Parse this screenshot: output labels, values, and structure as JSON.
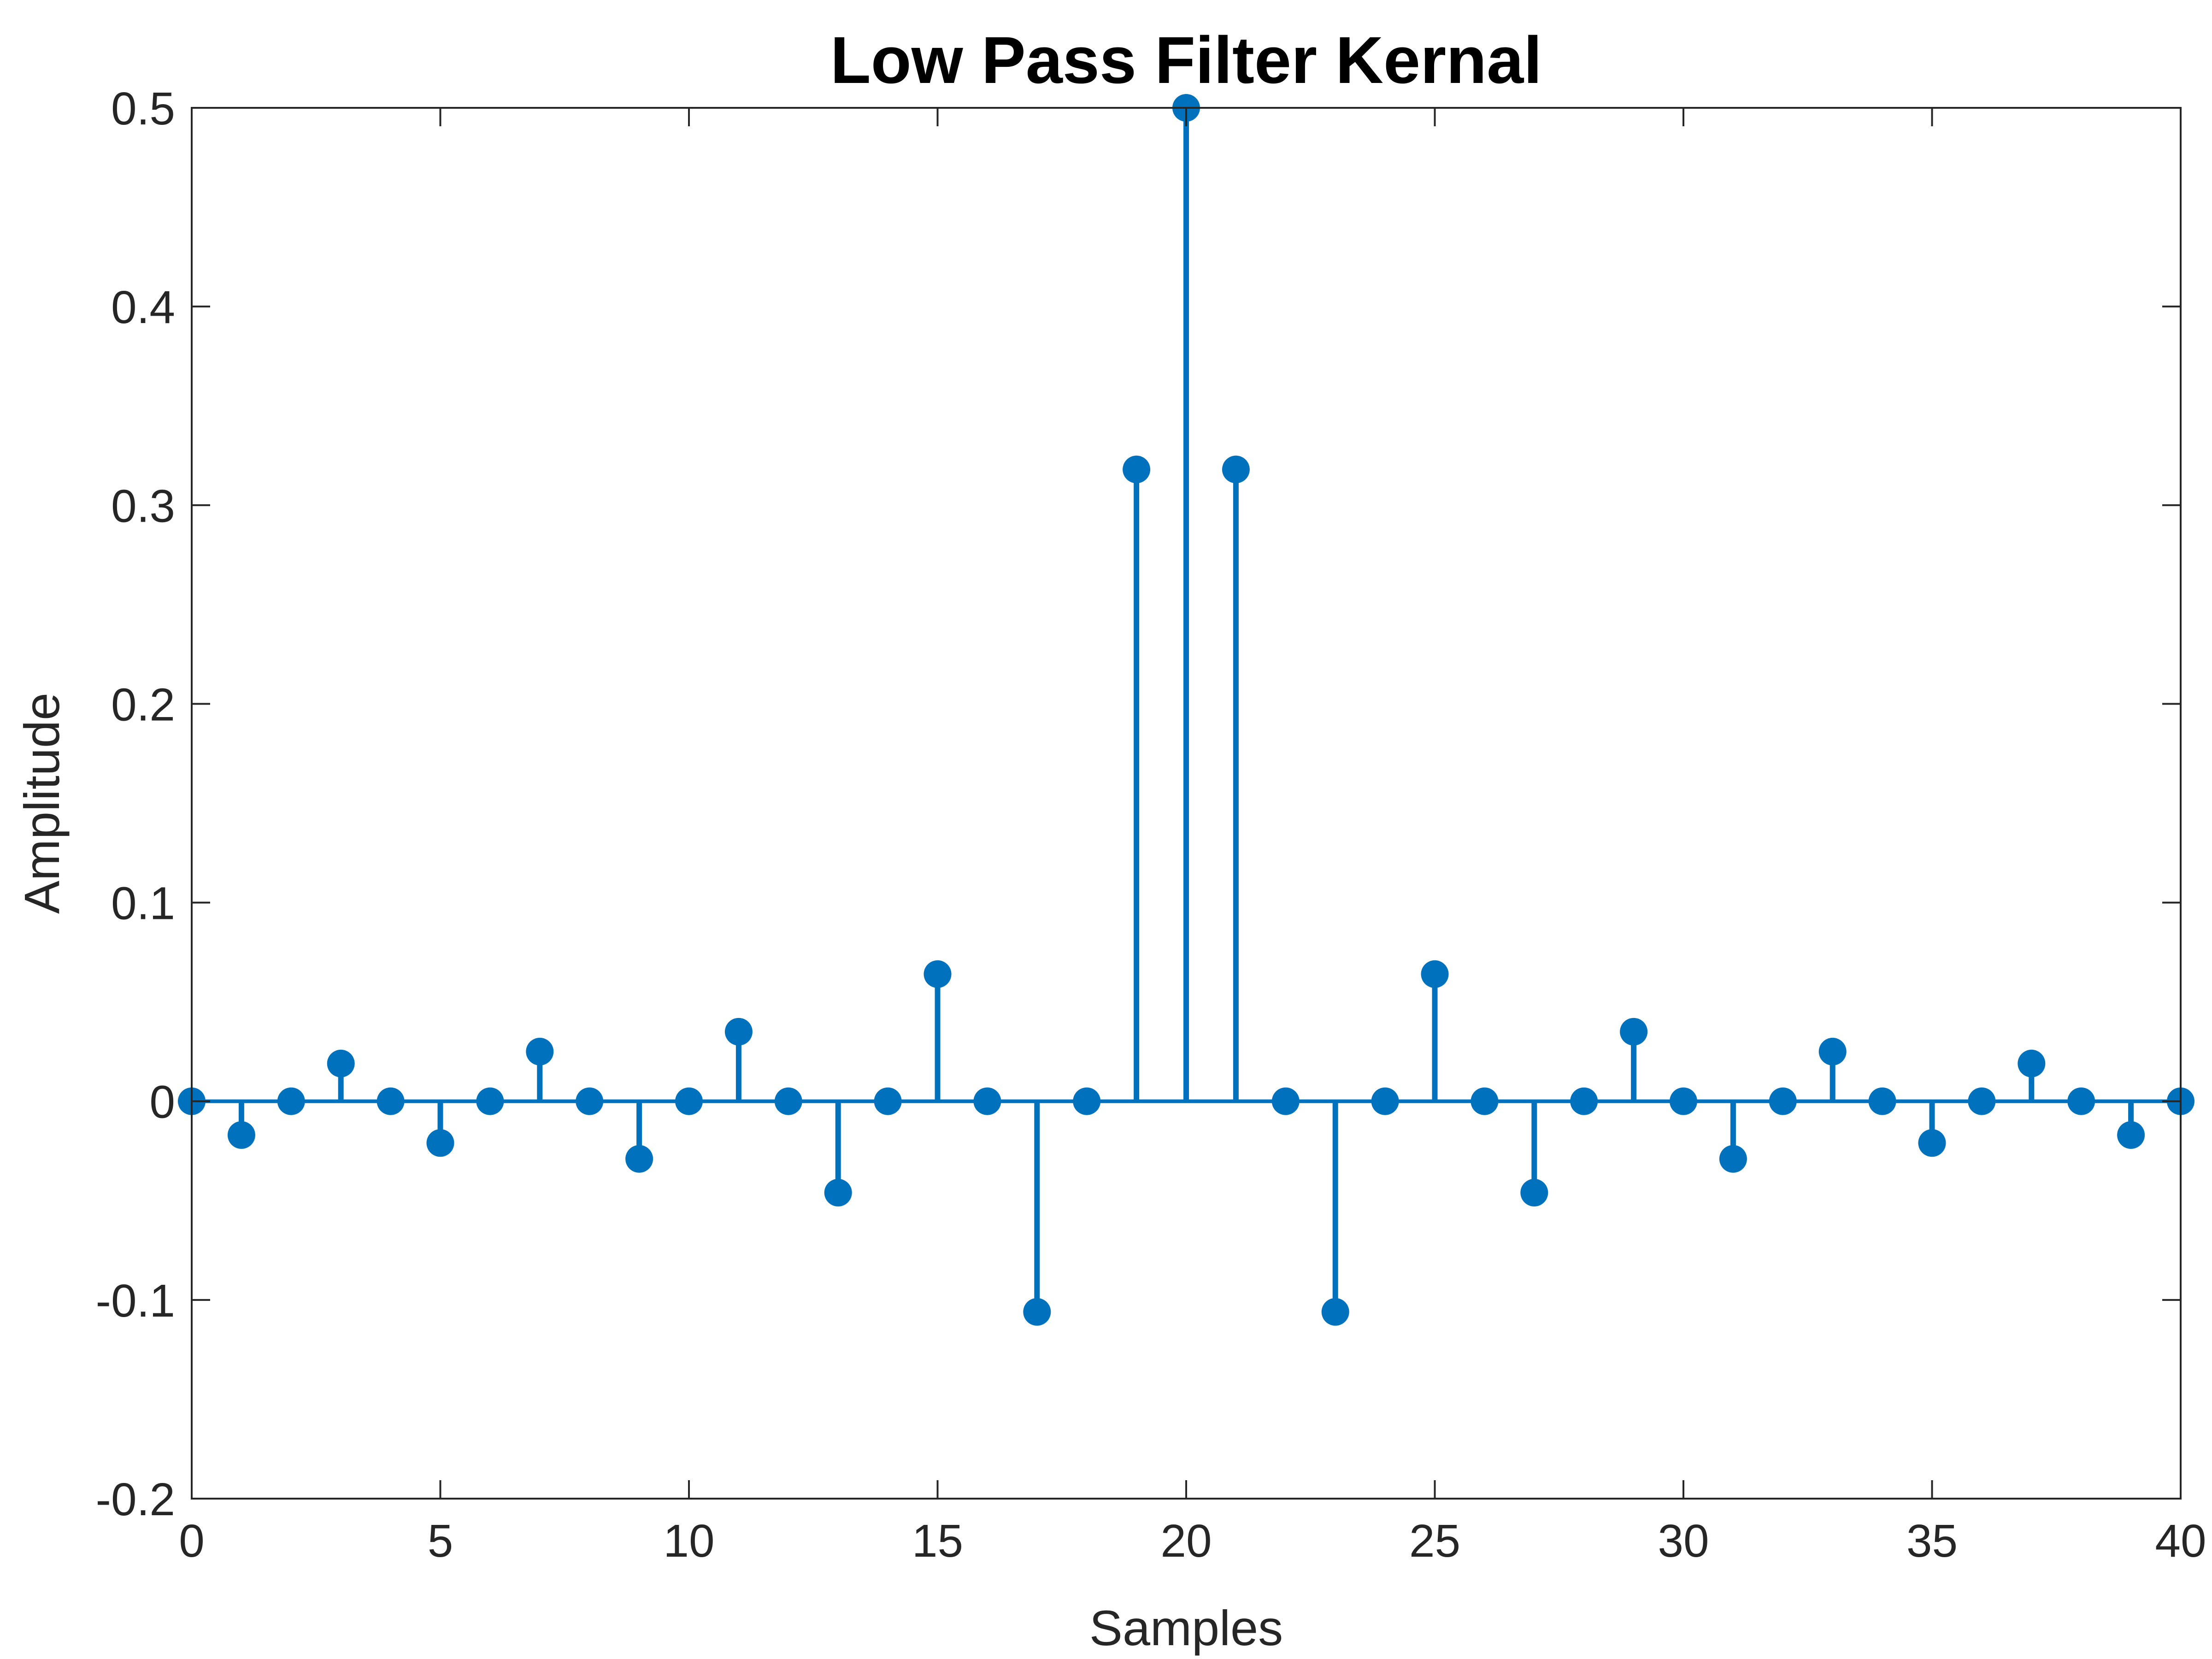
{
  "chart_data": {
    "type": "stem",
    "title": "Low Pass Filter Kernal",
    "xlabel": "Samples",
    "ylabel": "Amplitude",
    "xlim": [
      0,
      40
    ],
    "ylim": [
      -0.2,
      0.5
    ],
    "xticks": [
      0,
      5,
      10,
      15,
      20,
      25,
      30,
      35,
      40
    ],
    "xtick_labels": [
      "0",
      "5",
      "10",
      "15",
      "20",
      "25",
      "30",
      "35",
      "40"
    ],
    "yticks": [
      -0.2,
      -0.1,
      0,
      0.1,
      0.2,
      0.3,
      0.4,
      0.5
    ],
    "ytick_labels": [
      "-0.2",
      "-0.1",
      "0",
      "0.1",
      "0.2",
      "0.3",
      "0.4",
      "0.5"
    ],
    "grid": false,
    "box": true,
    "colors": {
      "series": "#0072BD",
      "axes": "#262626",
      "background": "#ffffff"
    },
    "x": [
      0,
      1,
      2,
      3,
      4,
      5,
      6,
      7,
      8,
      9,
      10,
      11,
      12,
      13,
      14,
      15,
      16,
      17,
      18,
      19,
      20,
      21,
      22,
      23,
      24,
      25,
      26,
      27,
      28,
      29,
      30,
      31,
      32,
      33,
      34,
      35,
      36,
      37,
      38,
      39,
      40
    ],
    "y": [
      0,
      -0.017,
      0,
      0.019,
      0,
      -0.021,
      0,
      0.025,
      0,
      -0.029,
      0,
      0.035,
      0,
      -0.046,
      0,
      0.064,
      0,
      -0.106,
      0,
      0.318,
      0.5,
      0.318,
      0,
      -0.106,
      0,
      0.064,
      0,
      -0.046,
      0,
      0.035,
      0,
      -0.029,
      0,
      0.025,
      0,
      -0.021,
      0,
      0.019,
      0,
      -0.017,
      0
    ]
  }
}
